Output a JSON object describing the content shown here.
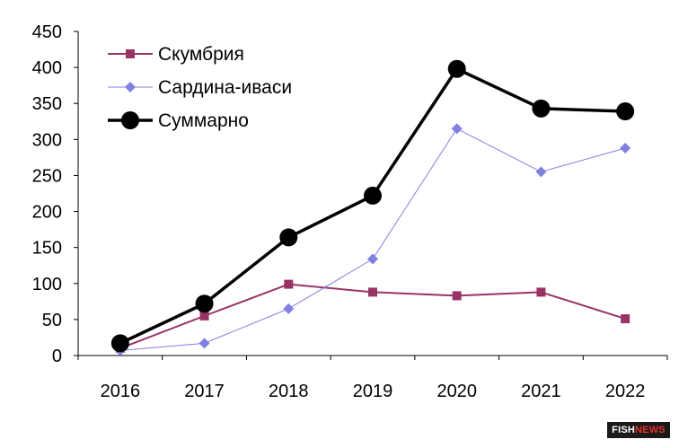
{
  "chart_data": {
    "type": "line",
    "categories": [
      "2016",
      "2017",
      "2018",
      "2019",
      "2020",
      "2021",
      "2022"
    ],
    "series": [
      {
        "name": "Скумбрия",
        "values": [
          10,
          55,
          99,
          88,
          83,
          88,
          51
        ],
        "color": "#993366",
        "marker": "square"
      },
      {
        "name": "Сардина-иваси",
        "values": [
          7,
          17,
          65,
          134,
          315,
          255,
          288
        ],
        "color": "#8080e0",
        "marker": "diamond"
      },
      {
        "name": "Суммарно",
        "values": [
          17,
          72,
          164,
          222,
          398,
          343,
          339
        ],
        "color": "#000000",
        "marker": "circle"
      }
    ],
    "ylim": [
      0,
      450
    ],
    "yticks": [
      "0",
      "50",
      "100",
      "150",
      "200",
      "250",
      "300",
      "350",
      "400",
      "450"
    ],
    "legend_position": "top-left",
    "grid": false
  },
  "watermark": {
    "part1": "FISH",
    "part2": "NEWS"
  }
}
